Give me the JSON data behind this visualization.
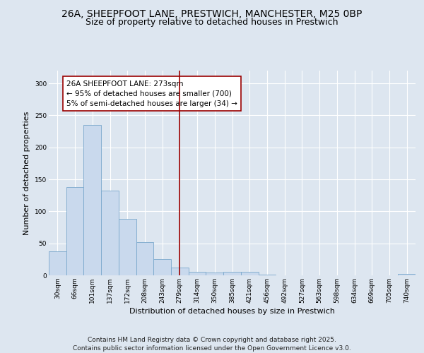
{
  "title_line1": "26A, SHEEPFOOT LANE, PRESTWICH, MANCHESTER, M25 0BP",
  "title_line2": "Size of property relative to detached houses in Prestwich",
  "xlabel": "Distribution of detached houses by size in Prestwich",
  "ylabel": "Number of detached properties",
  "categories": [
    "30sqm",
    "66sqm",
    "101sqm",
    "137sqm",
    "172sqm",
    "208sqm",
    "243sqm",
    "279sqm",
    "314sqm",
    "350sqm",
    "385sqm",
    "421sqm",
    "456sqm",
    "492sqm",
    "527sqm",
    "563sqm",
    "598sqm",
    "634sqm",
    "669sqm",
    "705sqm",
    "740sqm"
  ],
  "values": [
    38,
    138,
    235,
    132,
    88,
    52,
    25,
    12,
    6,
    4,
    6,
    6,
    1,
    0,
    0,
    0,
    0,
    0,
    0,
    0,
    2
  ],
  "bar_color": "#c9d9ed",
  "bar_edge_color": "#7aa8cc",
  "vline_x": 7,
  "vline_color": "#990000",
  "annotation_text": "26A SHEEPFOOT LANE: 273sqm\n← 95% of detached houses are smaller (700)\n5% of semi-detached houses are larger (34) →",
  "annotation_box_color": "#ffffff",
  "annotation_box_edge": "#990000",
  "ylim": [
    0,
    320
  ],
  "yticks": [
    0,
    50,
    100,
    150,
    200,
    250,
    300
  ],
  "bg_color": "#dde6f0",
  "fig_bg_color": "#dde6f0",
  "grid_color": "#ffffff",
  "footer": "Contains HM Land Registry data © Crown copyright and database right 2025.\nContains public sector information licensed under the Open Government Licence v3.0.",
  "title_fontsize": 10,
  "subtitle_fontsize": 9,
  "axis_label_fontsize": 8,
  "tick_fontsize": 6.5,
  "annotation_fontsize": 7.5,
  "footer_fontsize": 6.5
}
